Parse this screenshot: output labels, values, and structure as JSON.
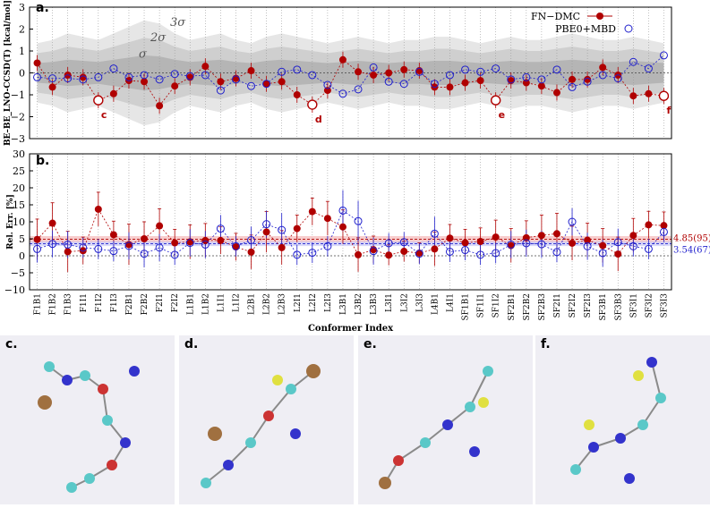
{
  "chart_data": [
    {
      "panel": "a.",
      "type": "scatter",
      "ylabel": "BE–BE_LNO-CCSD(T) [kcal/mol]",
      "xlabel": "",
      "ylim": [
        -3,
        3
      ],
      "yticks": [
        -3,
        -2,
        -1,
        0,
        1,
        2,
        3
      ],
      "sigma_labels": [
        "σ",
        "2σ",
        "3σ"
      ],
      "legend": [
        "FN−DMC",
        "PBE0+MBD"
      ],
      "annotations": [
        "c",
        "d",
        "e",
        "f"
      ],
      "series": [
        {
          "name": "FN−DMC",
          "values": [
            0.45,
            -0.65,
            -0.1,
            -0.2,
            -1.25,
            -0.95,
            -0.35,
            -0.4,
            -1.5,
            -0.6,
            -0.2,
            0.3,
            -0.4,
            -0.25,
            0.1,
            -0.5,
            -0.4,
            -1.0,
            -1.45,
            -0.8,
            0.6,
            0.05,
            -0.1,
            0.0,
            0.15,
            0.1,
            -0.65,
            -0.65,
            -0.45,
            -0.35,
            -1.25,
            -0.35,
            -0.45,
            -0.6,
            -0.9,
            -0.3,
            -0.3,
            0.25,
            -0.1,
            -1.05,
            -0.95,
            -1.05
          ]
        },
        {
          "name": "PBE0+MBD",
          "values": [
            -0.2,
            -0.25,
            -0.25,
            -0.3,
            -0.2,
            0.2,
            -0.2,
            -0.1,
            -0.3,
            -0.05,
            -0.15,
            -0.1,
            -0.8,
            -0.3,
            -0.6,
            -0.5,
            0.05,
            0.15,
            -0.1,
            -0.55,
            -0.95,
            -0.75,
            0.25,
            -0.4,
            -0.5,
            0.05,
            -0.5,
            -0.1,
            0.15,
            0.05,
            0.2,
            -0.3,
            -0.2,
            -0.3,
            0.15,
            -0.65,
            -0.4,
            -0.1,
            -0.25,
            0.5,
            0.2,
            0.8
          ]
        }
      ]
    },
    {
      "panel": "b.",
      "type": "scatter",
      "ylabel": "Rel. Err. [%]",
      "xlabel": "Conformer Index",
      "ylim": [
        -10,
        30
      ],
      "yticks": [
        -10,
        -5,
        0,
        5,
        10,
        15,
        20,
        25,
        30
      ],
      "right_labels": [
        "4.85(95)",
        "3.54(67)"
      ],
      "mean_lines": [
        4.85,
        3.54
      ],
      "categories": [
        "F1B1",
        "F1B2",
        "F1B3",
        "F1I1",
        "F1I2",
        "F1I3",
        "F2B1",
        "F2B2",
        "F2I1",
        "F2I2",
        "L1B1",
        "L1B2",
        "L1I1",
        "L1I2",
        "L2B1",
        "L2B2",
        "L2B3",
        "L2I1",
        "L2I2",
        "L2I3",
        "L3B1",
        "L3B2",
        "L3B3",
        "L3I1",
        "L3I2",
        "L3I3",
        "L4B1",
        "L4I1",
        "SF1B1",
        "SF1I1",
        "SF1I2",
        "SF2B1",
        "SF2B2",
        "SF2B3",
        "SF2I1",
        "SF2I2",
        "SF2I3",
        "SF3B1",
        "SF3B3",
        "SF3I1",
        "SF3I2",
        "SF3I3"
      ],
      "series": [
        {
          "name": "FN−DMC",
          "values": [
            4.8,
            9.6,
            1.2,
            1.5,
            13.7,
            6.2,
            3.3,
            5.0,
            8.8,
            3.8,
            4.1,
            4.5,
            4.5,
            2.6,
            1.1,
            7.0,
            2.4,
            8.0,
            13.0,
            11.0,
            8.5,
            0.3,
            1.8,
            0.2,
            1.3,
            0.8,
            2.0,
            5.2,
            3.8,
            4.2,
            5.5,
            3.0,
            5.3,
            6.0,
            6.5,
            3.7,
            4.6,
            3.0,
            0.5,
            6.0,
            9.1,
            8.9
          ],
          "err": [
            6,
            6,
            6,
            4,
            5,
            4,
            6,
            5,
            5,
            4,
            5,
            5,
            4,
            4,
            5,
            6,
            5,
            4,
            4,
            5,
            5,
            5,
            4,
            3,
            3,
            3,
            5,
            4,
            4,
            4,
            5,
            5,
            5,
            6,
            6,
            5,
            5,
            5,
            5,
            5,
            4,
            4
          ]
        },
        {
          "name": "PBE0+MBD",
          "values": [
            2.0,
            3.5,
            3.3,
            2.4,
            2.0,
            1.4,
            2.9,
            0.6,
            2.4,
            0.3,
            3.8,
            3.3,
            8.0,
            2.8,
            4.6,
            9.3,
            7.6,
            0.3,
            0.9,
            2.8,
            13.3,
            10.2,
            1.4,
            3.7,
            4.0,
            0.6,
            6.5,
            1.2,
            1.7,
            0.3,
            0.8,
            3.3,
            3.7,
            3.4,
            1.1,
            10.0,
            2.8,
            0.8,
            4.0,
            2.8,
            2.0,
            7.0
          ],
          "err": [
            4,
            4,
            4,
            3,
            3,
            3,
            4,
            4,
            4,
            3,
            4,
            4,
            4,
            3,
            4,
            4,
            5,
            3,
            3,
            3,
            6,
            6,
            4,
            3,
            3,
            3,
            5,
            3,
            3,
            3,
            3,
            4,
            4,
            4,
            3,
            4,
            4,
            4,
            4,
            3,
            3,
            3
          ]
        }
      ]
    }
  ],
  "colors": {
    "dmc": "#b00000",
    "mbd": "#1f1fcc",
    "band1": "#e6e6e6",
    "band2": "#cfcfcf",
    "band3": "#b5b5b5"
  },
  "molecule_panels": [
    "c.",
    "d.",
    "e.",
    "f."
  ]
}
